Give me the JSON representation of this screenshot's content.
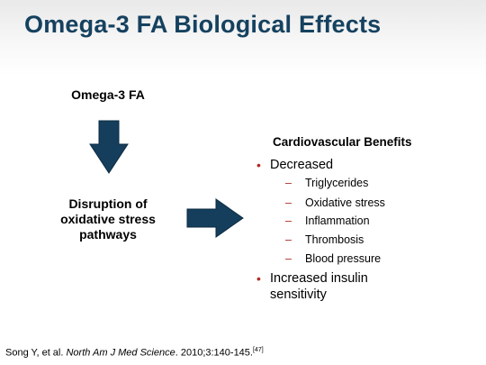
{
  "title": "Omega-3 FA Biological Effects",
  "flow": {
    "top_node": "Omega-3 FA",
    "middle_node_lines": [
      "Disruption of",
      "oxidative stress",
      "pathways"
    ]
  },
  "benefits": {
    "title": "Cardiovascular Benefits",
    "items": [
      {
        "text": "Decreased",
        "subitems": [
          "Triglycerides",
          "Oxidative stress",
          "Inflammation",
          "Thrombosis",
          "Blood pressure"
        ]
      },
      {
        "text_lines": [
          "Increased insulin",
          "sensitivity"
        ]
      }
    ],
    "bullet_glyph": "•",
    "dash_glyph": "–"
  },
  "citation": {
    "prefix": "Song Y, et al. ",
    "journal": "North Am J Med Science",
    "suffix": ". 2010;3:140-145.",
    "ref": "[47]"
  },
  "colors": {
    "title": "#15415f",
    "arrow": "#143e5c",
    "bullet": "#b02a24"
  }
}
